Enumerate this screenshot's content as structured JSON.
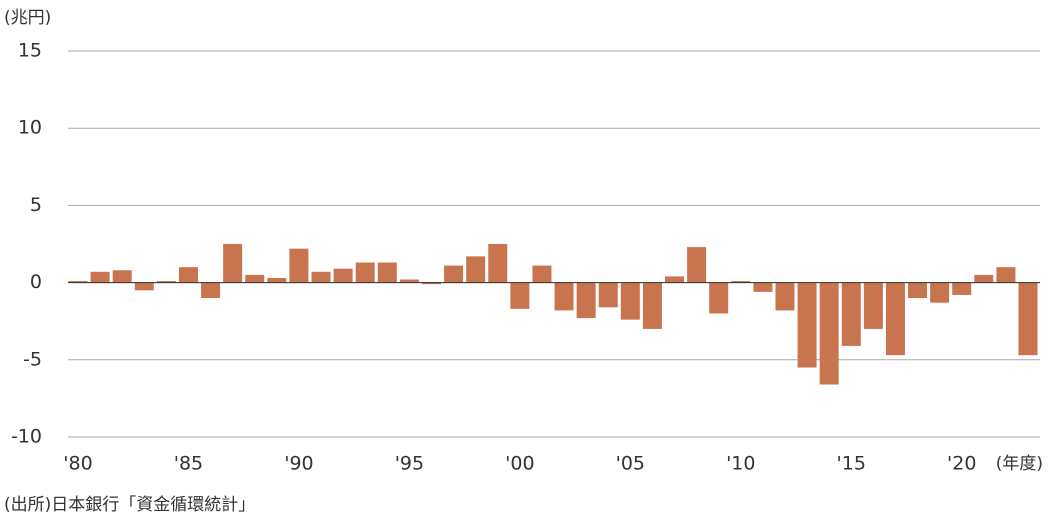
{
  "chart_data": {
    "type": "bar",
    "y_label": "(兆円)",
    "x_label": "(年度)",
    "source": "(出所)日本銀行「資金循環統計」",
    "categories": [
      "'80",
      null,
      null,
      null,
      null,
      "'85",
      null,
      null,
      null,
      null,
      "'90",
      null,
      null,
      null,
      null,
      "'95",
      null,
      null,
      null,
      null,
      "'00",
      null,
      null,
      null,
      null,
      "'05",
      null,
      null,
      null,
      null,
      "'10",
      null,
      null,
      null,
      null,
      "'15",
      null,
      null,
      null,
      null,
      "'20",
      null,
      null,
      null
    ],
    "values": [
      0.1,
      0.7,
      0.8,
      -0.5,
      0.1,
      1.0,
      -1.0,
      2.5,
      0.5,
      0.3,
      2.2,
      0.7,
      0.9,
      1.3,
      1.3,
      0.2,
      -0.1,
      1.1,
      1.7,
      2.5,
      -1.7,
      1.1,
      -1.8,
      -2.3,
      -1.6,
      -2.4,
      -3.0,
      0.4,
      2.3,
      -2.0,
      0.1,
      -0.6,
      -1.8,
      -5.5,
      -6.6,
      -4.1,
      -3.0,
      -4.7,
      -1.0,
      -1.3,
      -0.8,
      0.5,
      1.0,
      -4.7
    ],
    "color": "#c8744f",
    "ylim": [
      -10,
      15
    ],
    "yticks": [
      15,
      10,
      5,
      0,
      -5,
      -10
    ],
    "grid": true
  }
}
